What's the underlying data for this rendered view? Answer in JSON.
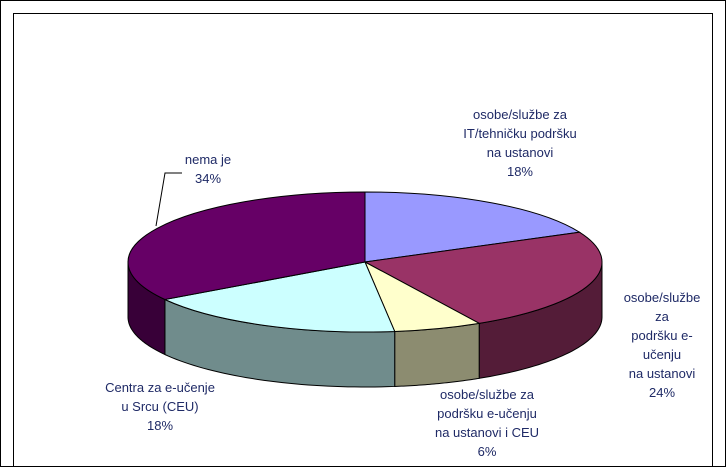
{
  "chart_data": {
    "type": "pie3d",
    "categories": [
      "osobe/službe za\nIT/tehničku podršku\nna ustanovi",
      "osobe/službe za\npodršku e-učenju\nna ustanovi",
      "osobe/službe za\npodršku e-učenju\nna ustanovi i CEU",
      "Centra za e-učenje\nu Srcu (CEU)",
      "nema je"
    ],
    "values": [
      18,
      24,
      6,
      18,
      34
    ],
    "value_labels": [
      "18%",
      "24%",
      "6%",
      "18%",
      "34%"
    ],
    "colors": [
      "#9999ff",
      "#993366",
      "#ffffcc",
      "#ccffff",
      "#660066"
    ]
  }
}
